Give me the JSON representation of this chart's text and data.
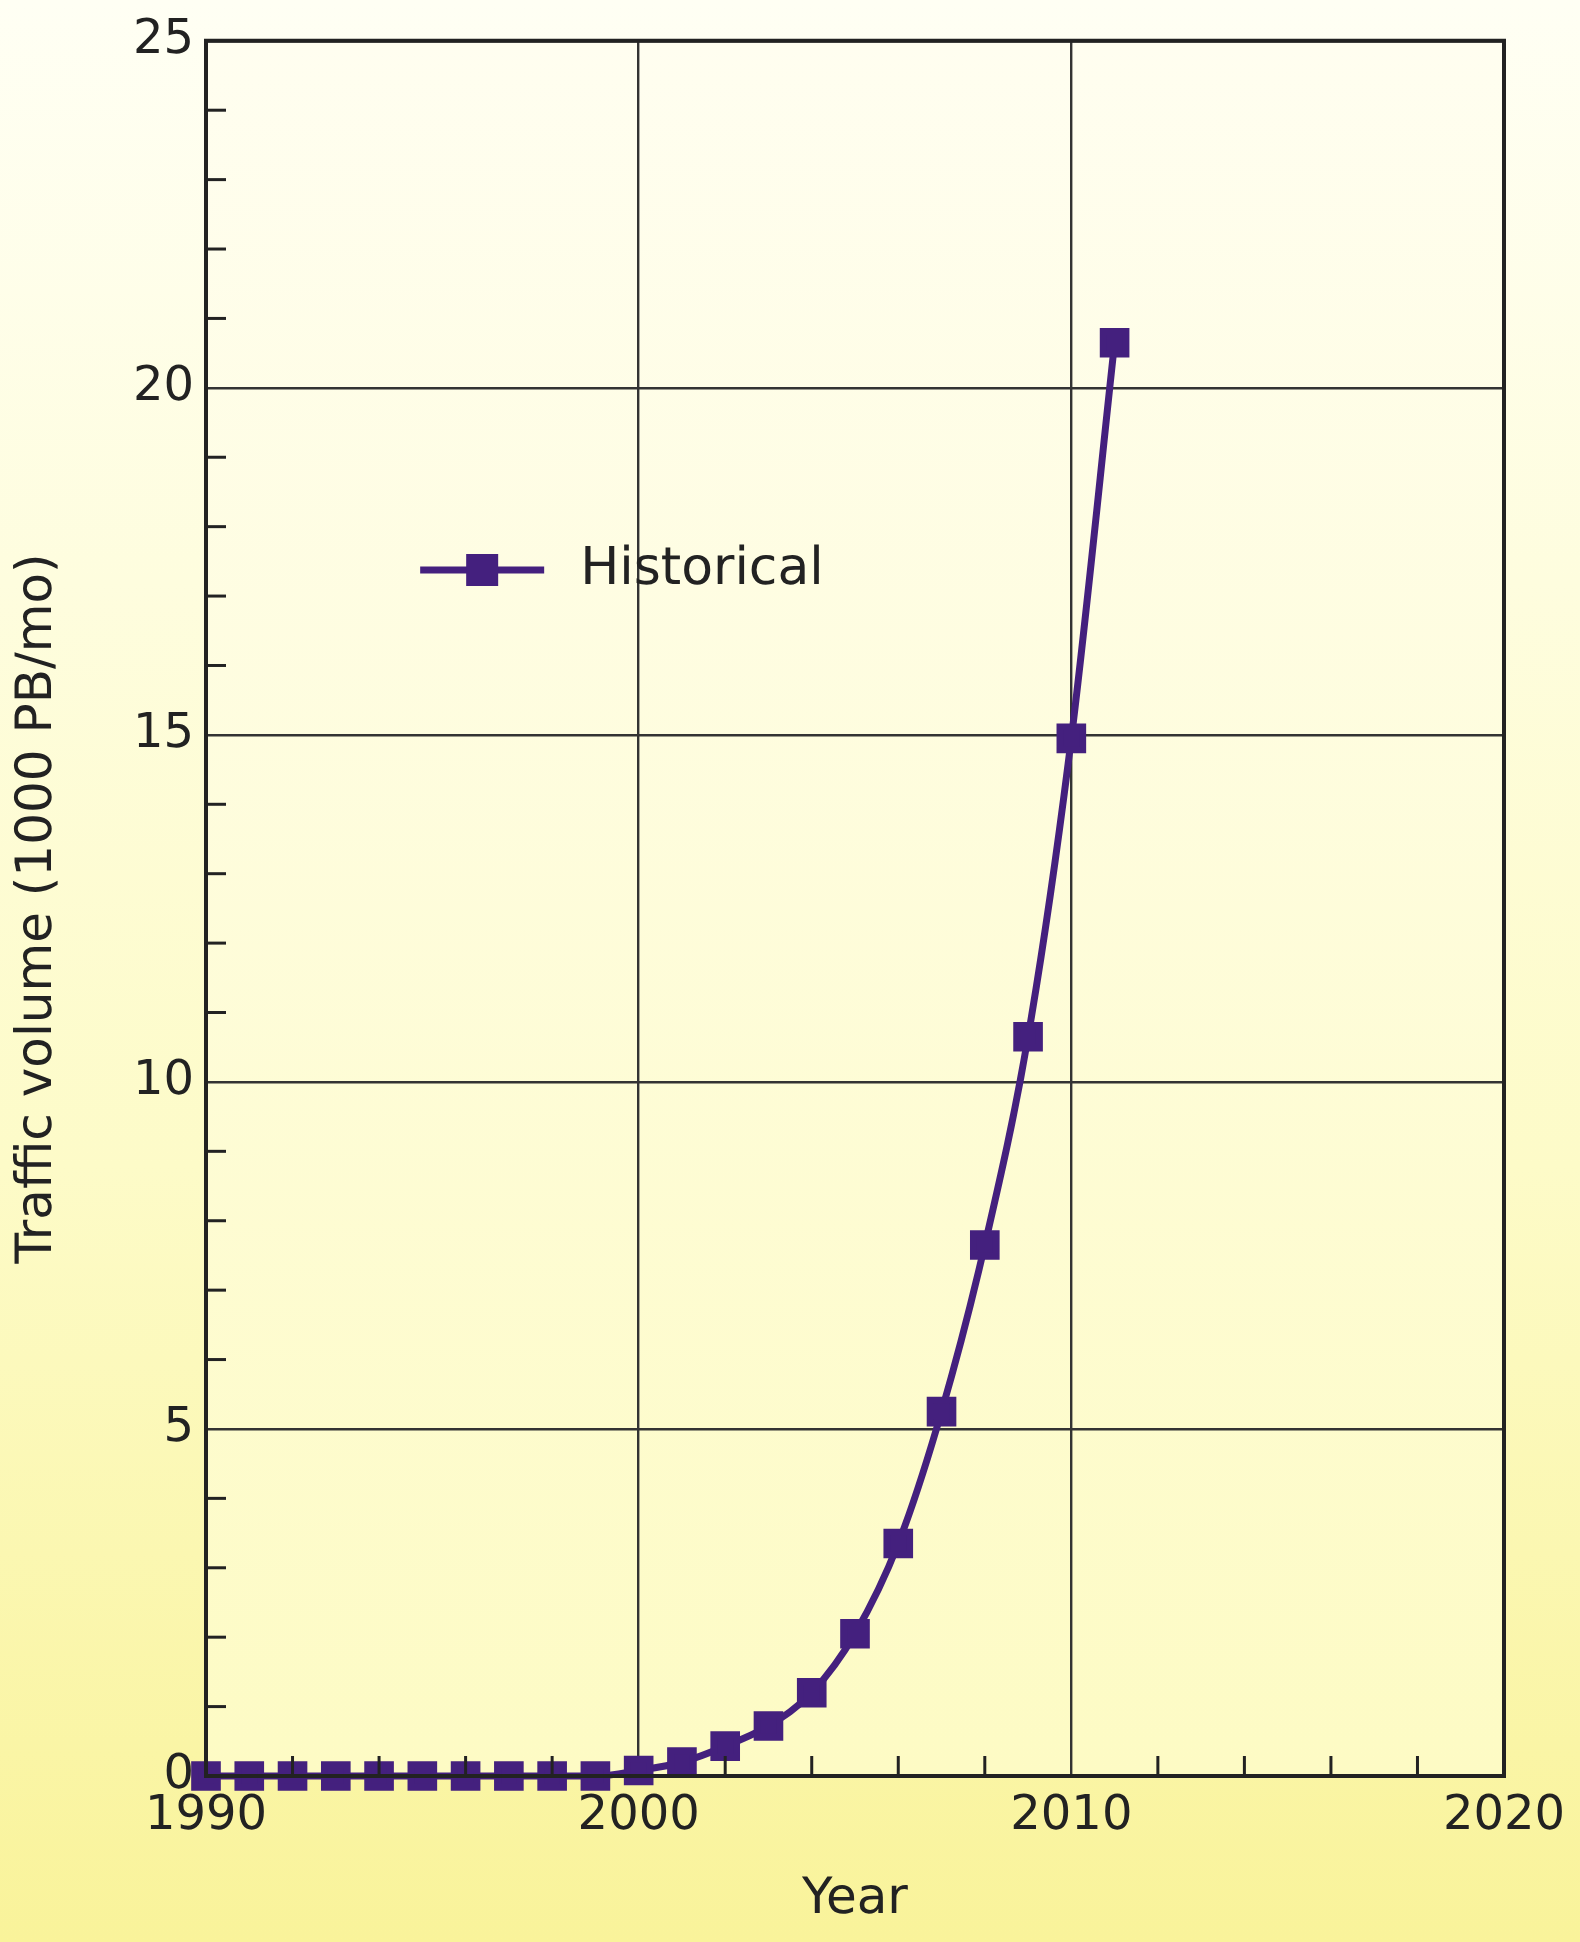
{
  "chart_data": {
    "type": "line",
    "xlabel": "Year",
    "ylabel": "Traffic volume (1000 PB/mo)",
    "x": [
      1990,
      1991,
      1992,
      1993,
      1994,
      1995,
      1996,
      1997,
      1998,
      1999,
      2000,
      2001,
      2002,
      2003,
      2004,
      2005,
      2006,
      2007,
      2008,
      2009,
      2010,
      2011
    ],
    "series": [
      {
        "name": "Historical",
        "color": "#44207e",
        "values": [
          0,
          0,
          0,
          0,
          0,
          0,
          0,
          0,
          0,
          0,
          0.08,
          0.2,
          0.43,
          0.72,
          1.2,
          2.05,
          3.35,
          5.25,
          7.65,
          10.65,
          14.95,
          20.65
        ]
      }
    ],
    "xlim": [
      1990,
      2020
    ],
    "xticks": [
      1990,
      {
        "value": 1992,
        "label": null
      },
      {
        "value": 1994,
        "label": null
      },
      {
        "value": 1996,
        "label": null
      },
      {
        "value": 1998,
        "label": null
      },
      2000,
      {
        "value": 2002,
        "label": null
      },
      {
        "value": 2004,
        "label": null
      },
      {
        "value": 2006,
        "label": null
      },
      {
        "value": 2008,
        "label": null
      },
      2010,
      {
        "value": 2012,
        "label": null
      },
      {
        "value": 2014,
        "label": null
      },
      {
        "value": 2016,
        "label": null
      },
      {
        "value": 2018,
        "label": null
      },
      2020
    ],
    "ylim": [
      0,
      25
    ],
    "yticks": [
      0,
      {
        "value": 1,
        "label": null
      },
      {
        "value": 2,
        "label": null
      },
      {
        "value": 3,
        "label": null
      },
      {
        "value": 4,
        "label": null
      },
      5,
      {
        "value": 6,
        "label": null
      },
      {
        "value": 7,
        "label": null
      },
      {
        "value": 8,
        "label": null
      },
      {
        "value": 9,
        "label": null
      },
      10,
      {
        "value": 11,
        "label": null
      },
      {
        "value": 12,
        "label": null
      },
      {
        "value": 13,
        "label": null
      },
      {
        "value": 14,
        "label": null
      },
      15,
      {
        "value": 16,
        "label": null
      },
      {
        "value": 17,
        "label": null
      },
      {
        "value": 18,
        "label": null
      },
      {
        "value": 19,
        "label": null
      },
      20,
      {
        "value": 21,
        "label": null
      },
      {
        "value": 22,
        "label": null
      },
      {
        "value": 23,
        "label": null
      },
      {
        "value": 24,
        "label": null
      },
      25
    ],
    "grid": true,
    "legend": "top left",
    "marker": "square",
    "line_style": "solid"
  }
}
